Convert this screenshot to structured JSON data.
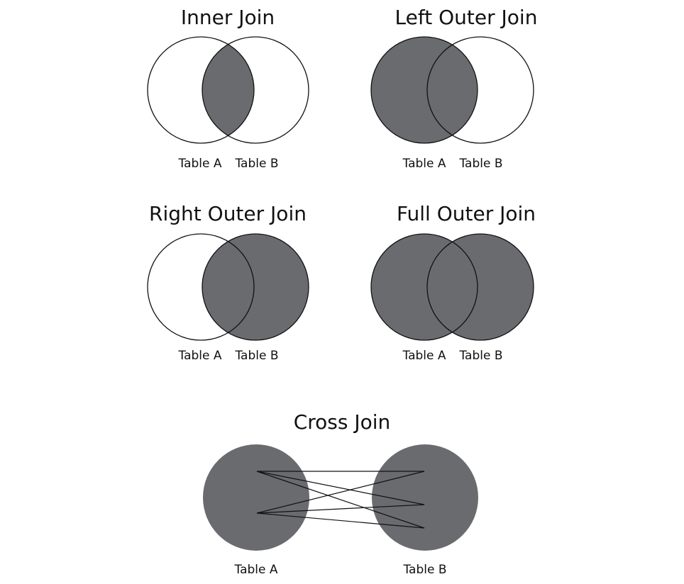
{
  "shade_color": "#6a6b6e",
  "diagrams": {
    "inner": {
      "title": "Inner Join",
      "label_a": "Table A",
      "label_b": "Table B"
    },
    "left": {
      "title": "Left Outer Join",
      "label_a": "Table A",
      "label_b": "Table B"
    },
    "right": {
      "title": "Right Outer Join",
      "label_a": "Table A",
      "label_b": "Table B"
    },
    "full": {
      "title": "Full Outer Join",
      "label_a": "Table A",
      "label_b": "Table B"
    },
    "cross": {
      "title": "Cross Join",
      "label_a": "Table A",
      "label_b": "Table B"
    }
  }
}
